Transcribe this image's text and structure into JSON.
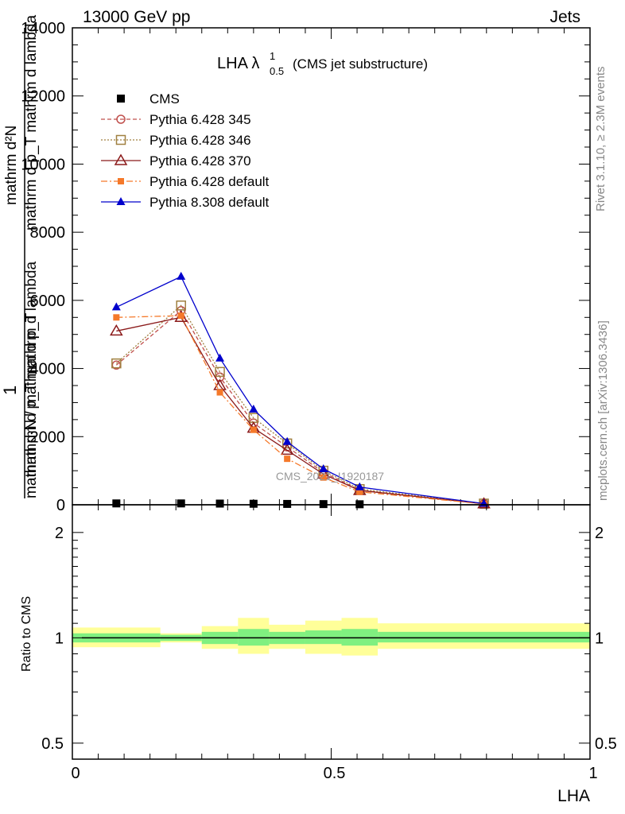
{
  "header": {
    "left": "13000 GeV pp",
    "right": "Jets"
  },
  "side_labels": {
    "rivet": "Rivet 3.1.10, ≥ 2.3M events",
    "mcplots": "mcplots.cern.ch [arXiv:1306.3436]"
  },
  "chart_data": [
    {
      "type": "line",
      "title": "LHA λ",
      "title_sup": "1",
      "title_sub": "0.5",
      "title_suffix": "(CMS jet substructure)",
      "watermark": "CMS_2021_I1920187",
      "ylabel_top": "mathrm d²N",
      "ylabel_top_overlap": "mathrm d p_T mathrm d lambda",
      "ylabel_big": "1",
      "ylabel_bottom": "mathrm d N / mathrm d p_T",
      "ylabel_bottom_overlap": "mathrm d p_T mathrm d lambda",
      "ylim": [
        0,
        14000
      ],
      "yticks": [
        0,
        2000,
        4000,
        6000,
        8000,
        10000,
        12000,
        14000
      ],
      "ytick_labels": [
        "0",
        "2000",
        "4000",
        "6000",
        "8000",
        "10000",
        "12000",
        "14000"
      ],
      "xlim": [
        0,
        1
      ],
      "x": [
        0.085,
        0.21,
        0.285,
        0.35,
        0.415,
        0.485,
        0.555,
        0.795
      ],
      "series": [
        {
          "name": "CMS",
          "color": "#000000",
          "marker": "square-filled",
          "dash": "none",
          "values": [
            40,
            40,
            35,
            30,
            25,
            20,
            15,
            5
          ]
        },
        {
          "name": "Pythia 6.428 345",
          "color": "#c0504d",
          "marker": "circle-open",
          "dash": "5,3",
          "values": [
            4100,
            5700,
            3750,
            2400,
            1700,
            950,
            430,
            30
          ]
        },
        {
          "name": "Pythia 6.428 346",
          "color": "#a08040",
          "marker": "square-open",
          "dash": "2,2",
          "values": [
            4150,
            5850,
            3900,
            2550,
            1800,
            1000,
            460,
            35
          ]
        },
        {
          "name": "Pythia 6.428 370",
          "color": "#8b1a1a",
          "marker": "triangle-open",
          "dash": "none",
          "values": [
            5100,
            5500,
            3500,
            2250,
            1600,
            900,
            420,
            30
          ]
        },
        {
          "name": "Pythia 6.428 default",
          "color": "#f5792a",
          "marker": "square-filled-small",
          "dash": "8,3,2,3",
          "values": [
            5500,
            5550,
            3300,
            2200,
            1350,
            800,
            380,
            25
          ]
        },
        {
          "name": "Pythia 8.308 default",
          "color": "#0000cc",
          "marker": "triangle-filled",
          "dash": "none",
          "values": [
            5800,
            6700,
            4300,
            2800,
            1850,
            1050,
            520,
            35
          ]
        }
      ]
    },
    {
      "type": "area",
      "ylabel": "Ratio to CMS",
      "xlabel": "LHA",
      "ylim": [
        0.45,
        2.4
      ],
      "log_y": true,
      "yticks": [
        0.5,
        1,
        2
      ],
      "ytick_labels": [
        "0.5",
        "1",
        "2"
      ],
      "xlim": [
        0,
        1
      ],
      "xticks": [
        0,
        0.5,
        1
      ],
      "xtick_labels": [
        "0",
        "0.5",
        "1"
      ],
      "bin_edges": [
        0,
        0.17,
        0.25,
        0.32,
        0.38,
        0.45,
        0.52,
        0.59,
        1.0
      ],
      "band_stat": {
        "color": "#80f080",
        "lo": [
          0.97,
          0.98,
          0.96,
          0.95,
          0.96,
          0.96,
          0.95,
          0.97
        ],
        "hi": [
          1.03,
          1.02,
          1.04,
          1.06,
          1.04,
          1.05,
          1.06,
          1.04
        ]
      },
      "band_total": {
        "color": "#ffff99",
        "lo": [
          0.94,
          0.97,
          0.93,
          0.9,
          0.93,
          0.9,
          0.89,
          0.93
        ],
        "hi": [
          1.07,
          1.03,
          1.08,
          1.14,
          1.09,
          1.12,
          1.14,
          1.1
        ]
      },
      "reference": 1
    }
  ]
}
